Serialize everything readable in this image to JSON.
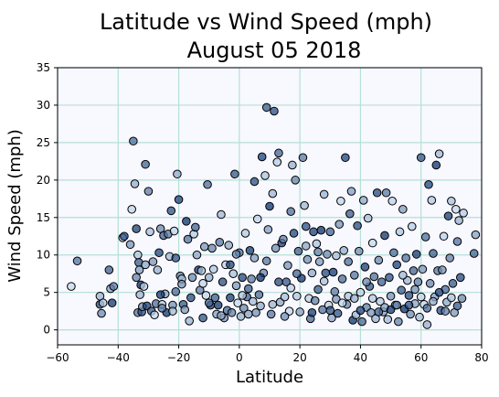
{
  "chart_data": {
    "type": "scatter",
    "title_line1": "Latitude vs Wind Speed (mph)",
    "title_line2": "August 05 2018",
    "xlabel": "Latitude",
    "ylabel": "Wind Speed (mph)",
    "xlim": [
      -60,
      80
    ],
    "ylim": [
      -2,
      35
    ],
    "xticks": [
      -60,
      -40,
      -20,
      0,
      20,
      40,
      60,
      80
    ],
    "yticks": [
      0,
      5,
      10,
      15,
      20,
      25,
      30,
      35
    ],
    "grid": true,
    "colors": {
      "plot_background": "#f8f8ff",
      "grid": "#b4e0d6",
      "marker_edge": "#000000",
      "colormap_low": "#c6dbef",
      "colormap_high": "#08306b"
    },
    "points": [
      [
        -55.5,
        5.8
      ],
      [
        -53.5,
        9.2
      ],
      [
        -46,
        4.5
      ],
      [
        -46,
        3.4
      ],
      [
        -45.5,
        2.2
      ],
      [
        -45,
        3.6
      ],
      [
        -43,
        8
      ],
      [
        -42.5,
        5.5
      ],
      [
        -42,
        3.6
      ],
      [
        -41.5,
        5.8
      ],
      [
        -38.5,
        12.3
      ],
      [
        -38,
        12.5
      ],
      [
        -36,
        11.4
      ],
      [
        -35.5,
        16.1
      ],
      [
        -35,
        25.2
      ],
      [
        -34.5,
        19.5
      ],
      [
        -34,
        13.5
      ],
      [
        -34,
        7
      ],
      [
        -33.5,
        10
      ],
      [
        -33.2,
        9
      ],
      [
        -33,
        8
      ],
      [
        -32.5,
        6
      ],
      [
        -33.5,
        2.3
      ],
      [
        -32.8,
        4.7
      ],
      [
        -32.2,
        2.4
      ],
      [
        -32,
        3.1
      ],
      [
        -31.5,
        5.8
      ],
      [
        -31,
        22.1
      ],
      [
        -31,
        8.7
      ],
      [
        -30.5,
        3.2
      ],
      [
        -30,
        18.5
      ],
      [
        -29.5,
        13.1
      ],
      [
        -29,
        2.5
      ],
      [
        -28.5,
        9.1
      ],
      [
        -28,
        2
      ],
      [
        -27.5,
        3.5
      ],
      [
        -27,
        8
      ],
      [
        -26.5,
        10.3
      ],
      [
        -26,
        13.5
      ],
      [
        -25.5,
        3.4
      ],
      [
        -25,
        12.6
      ],
      [
        -24.5,
        4.8
      ],
      [
        -24,
        2.3
      ],
      [
        -23.5,
        12.8
      ],
      [
        -23,
        9.8
      ],
      [
        -22.5,
        15.9
      ],
      [
        -22,
        3.3
      ],
      [
        -21.5,
        13.2
      ],
      [
        -21,
        5.1
      ],
      [
        -20.5,
        20.8
      ],
      [
        -20,
        17.4
      ],
      [
        -19.5,
        7.2
      ],
      [
        -19,
        6.8
      ],
      [
        -18.5,
        3.4
      ],
      [
        -18,
        2.7
      ],
      [
        -17.5,
        14.5
      ],
      [
        -17,
        12.1
      ],
      [
        -16.5,
        1.2
      ],
      [
        -16,
        4.3
      ],
      [
        -15.5,
        7
      ],
      [
        -15,
        12.8
      ],
      [
        -14.5,
        13.7
      ],
      [
        -14,
        10
      ],
      [
        -13.5,
        8
      ],
      [
        -13,
        5.3
      ],
      [
        -12.5,
        7.9
      ],
      [
        -12,
        1.6
      ],
      [
        -11.5,
        11.1
      ],
      [
        -11,
        4.6
      ],
      [
        -10.5,
        19.4
      ],
      [
        -10,
        7
      ],
      [
        -9.5,
        3.3
      ],
      [
        -9,
        10.9
      ],
      [
        -8.5,
        8.1
      ],
      [
        -8,
        4.3
      ],
      [
        -7.5,
        2.1
      ],
      [
        -7,
        3.3
      ],
      [
        -6.5,
        11.7
      ],
      [
        -6,
        15.4
      ],
      [
        -5.5,
        6.4
      ],
      [
        -5,
        1.6
      ],
      [
        -4.5,
        8.7
      ],
      [
        -4,
        2.6
      ],
      [
        -3.5,
        11.3
      ],
      [
        -3,
        4.3
      ],
      [
        -2.5,
        2.3
      ],
      [
        -2,
        7.5
      ],
      [
        -1.5,
        20.8
      ],
      [
        -1,
        5.9
      ],
      [
        -0.5,
        3.6
      ],
      [
        0,
        10.3
      ],
      [
        0.5,
        1.8
      ],
      [
        1,
        7
      ],
      [
        1.5,
        2.9
      ],
      [
        2,
        12.9
      ],
      [
        2.5,
        4.4
      ],
      [
        3,
        2.1
      ],
      [
        3.5,
        10.6
      ],
      [
        4,
        6.8
      ],
      [
        4.5,
        3.8
      ],
      [
        5,
        19.8
      ],
      [
        5.5,
        2.3
      ],
      [
        6,
        14.8
      ],
      [
        6.5,
        4.7
      ],
      [
        7,
        3.2
      ],
      [
        7.5,
        23.1
      ],
      [
        8,
        7.6
      ],
      [
        8.5,
        20.6
      ],
      [
        9,
        29.7
      ],
      [
        9.5,
        13.4
      ],
      [
        10,
        16.5
      ],
      [
        10.5,
        2.1
      ],
      [
        11,
        18.2
      ],
      [
        11.5,
        29.2
      ],
      [
        12,
        10.9
      ],
      [
        12.5,
        22.4
      ],
      [
        13,
        23.6
      ],
      [
        13.5,
        3.7
      ],
      [
        14,
        11.6
      ],
      [
        14.5,
        12.1
      ],
      [
        15,
        4.4
      ],
      [
        15.5,
        6.4
      ],
      [
        16,
        8.6
      ],
      [
        16.5,
        2.5
      ],
      [
        17,
        15.8
      ],
      [
        17.5,
        22
      ],
      [
        18,
        12.9
      ],
      [
        18.5,
        20
      ],
      [
        19,
        4.5
      ],
      [
        19.5,
        10.5
      ],
      [
        20,
        2.4
      ],
      [
        20.5,
        6.9
      ],
      [
        21,
        23
      ],
      [
        21.5,
        16.6
      ],
      [
        22,
        13.8
      ],
      [
        22.5,
        9.4
      ],
      [
        23,
        4.2
      ],
      [
        23.5,
        1.5
      ],
      [
        24,
        7.6
      ],
      [
        24.5,
        13.1
      ],
      [
        25,
        3.9
      ],
      [
        25.5,
        11.5
      ],
      [
        26,
        5.4
      ],
      [
        26.5,
        9.1
      ],
      [
        27,
        13.3
      ],
      [
        27.5,
        2.7
      ],
      [
        28,
        18.1
      ],
      [
        28.5,
        7.6
      ],
      [
        29,
        10.1
      ],
      [
        29.5,
        3.3
      ],
      [
        30,
        13.1
      ],
      [
        30.5,
        1.6
      ],
      [
        31,
        7.7
      ],
      [
        31.5,
        5.1
      ],
      [
        32,
        9.9
      ],
      [
        32.5,
        2.2
      ],
      [
        33,
        14.1
      ],
      [
        33.5,
        17.2
      ],
      [
        34,
        6.8
      ],
      [
        34.5,
        10.6
      ],
      [
        35,
        23
      ],
      [
        35.5,
        3.4
      ],
      [
        36,
        4.5
      ],
      [
        36.5,
        15.5
      ],
      [
        37,
        18.5
      ],
      [
        37.5,
        1.3
      ],
      [
        38,
        7.3
      ],
      [
        38.5,
        2
      ],
      [
        39,
        13.9
      ],
      [
        39.5,
        10.5
      ],
      [
        40,
        5
      ],
      [
        40.5,
        1.1
      ],
      [
        41,
        17.3
      ],
      [
        41.5,
        8.4
      ],
      [
        42,
        3
      ],
      [
        42.5,
        14.9
      ],
      [
        43,
        5.8
      ],
      [
        43.5,
        2.3
      ],
      [
        44,
        11.6
      ],
      [
        44.5,
        7.1
      ],
      [
        45,
        1.5
      ],
      [
        45.5,
        18.3
      ],
      [
        46,
        9.3
      ],
      [
        46.5,
        3.8
      ],
      [
        47,
        6.4
      ],
      [
        47.5,
        2.4
      ],
      [
        48,
        12.6
      ],
      [
        48.5,
        18.3
      ],
      [
        49,
        1.4
      ],
      [
        49.5,
        7
      ],
      [
        50,
        4.5
      ],
      [
        50.5,
        17.2
      ],
      [
        51,
        10.3
      ],
      [
        51.5,
        3.3
      ],
      [
        52,
        8.7
      ],
      [
        52.5,
        1.1
      ],
      [
        53,
        13.1
      ],
      [
        53.5,
        5.3
      ],
      [
        54,
        16.1
      ],
      [
        54.5,
        2.8
      ],
      [
        55,
        9.6
      ],
      [
        55.5,
        6.6
      ],
      [
        56,
        4.6
      ],
      [
        56.5,
        2.1
      ],
      [
        57,
        13.8
      ],
      [
        57.5,
        7.9
      ],
      [
        58,
        3.5
      ],
      [
        58.5,
        10.1
      ],
      [
        59,
        6.4
      ],
      [
        59.5,
        1.7
      ],
      [
        60,
        23
      ],
      [
        60.5,
        8.1
      ],
      [
        61,
        3.4
      ],
      [
        61.5,
        12.4
      ],
      [
        62,
        0.7
      ],
      [
        62.5,
        19.4
      ],
      [
        63,
        6.2
      ],
      [
        63.5,
        17.3
      ],
      [
        64,
        10.2
      ],
      [
        64.5,
        4.4
      ],
      [
        65,
        22
      ],
      [
        65.5,
        7.9
      ],
      [
        66,
        23.5
      ],
      [
        66.5,
        2.6
      ],
      [
        67,
        8
      ],
      [
        67.5,
        12.5
      ],
      [
        68,
        5.4
      ],
      [
        68.5,
        3.7
      ],
      [
        69,
        15.2
      ],
      [
        69.5,
        9.6
      ],
      [
        70,
        17.2
      ],
      [
        70.5,
        6.2
      ],
      [
        71,
        2.3
      ],
      [
        71.5,
        16.1
      ],
      [
        72,
        11.8
      ],
      [
        72.5,
        14.6
      ],
      [
        73,
        7
      ],
      [
        73.5,
        4.2
      ],
      [
        74,
        15.6
      ],
      [
        77.5,
        10.2
      ],
      [
        78,
        12.7
      ],
      [
        -26,
        4.7
      ],
      [
        -25.5,
        2.9
      ],
      [
        -22,
        2.5
      ],
      [
        -21,
        9.6
      ],
      [
        -19,
        6.1
      ],
      [
        -12,
        6.2
      ],
      [
        -10,
        3.6
      ],
      [
        -6,
        1.9
      ],
      [
        -3,
        8.7
      ],
      [
        -1,
        10.1
      ],
      [
        1,
        4.6
      ],
      [
        3,
        5.5
      ],
      [
        5,
        9.6
      ],
      [
        7,
        7
      ],
      [
        9,
        9.2
      ],
      [
        11,
        3.4
      ],
      [
        13,
        6.4
      ],
      [
        15,
        1.8
      ],
      [
        17,
        5.6
      ],
      [
        19,
        7.5
      ],
      [
        22,
        11.2
      ],
      [
        24,
        2.3
      ],
      [
        26,
        10.4
      ],
      [
        28,
        6.5
      ],
      [
        30,
        2.6
      ],
      [
        32,
        4.1
      ],
      [
        34,
        3.6
      ],
      [
        36,
        9.1
      ],
      [
        38,
        4.2
      ],
      [
        40,
        2.6
      ],
      [
        42,
        6.4
      ],
      [
        44,
        4.2
      ],
      [
        46,
        2.4
      ],
      [
        48,
        3
      ],
      [
        50,
        2.7
      ],
      [
        52,
        3.3
      ],
      [
        54,
        7.3
      ],
      [
        56,
        3.3
      ],
      [
        58,
        5.4
      ],
      [
        60,
        4.4
      ],
      [
        62,
        2.9
      ],
      [
        64,
        3.8
      ],
      [
        66,
        5
      ],
      [
        68,
        2.5
      ],
      [
        70,
        4.3
      ],
      [
        72,
        3.2
      ]
    ]
  }
}
